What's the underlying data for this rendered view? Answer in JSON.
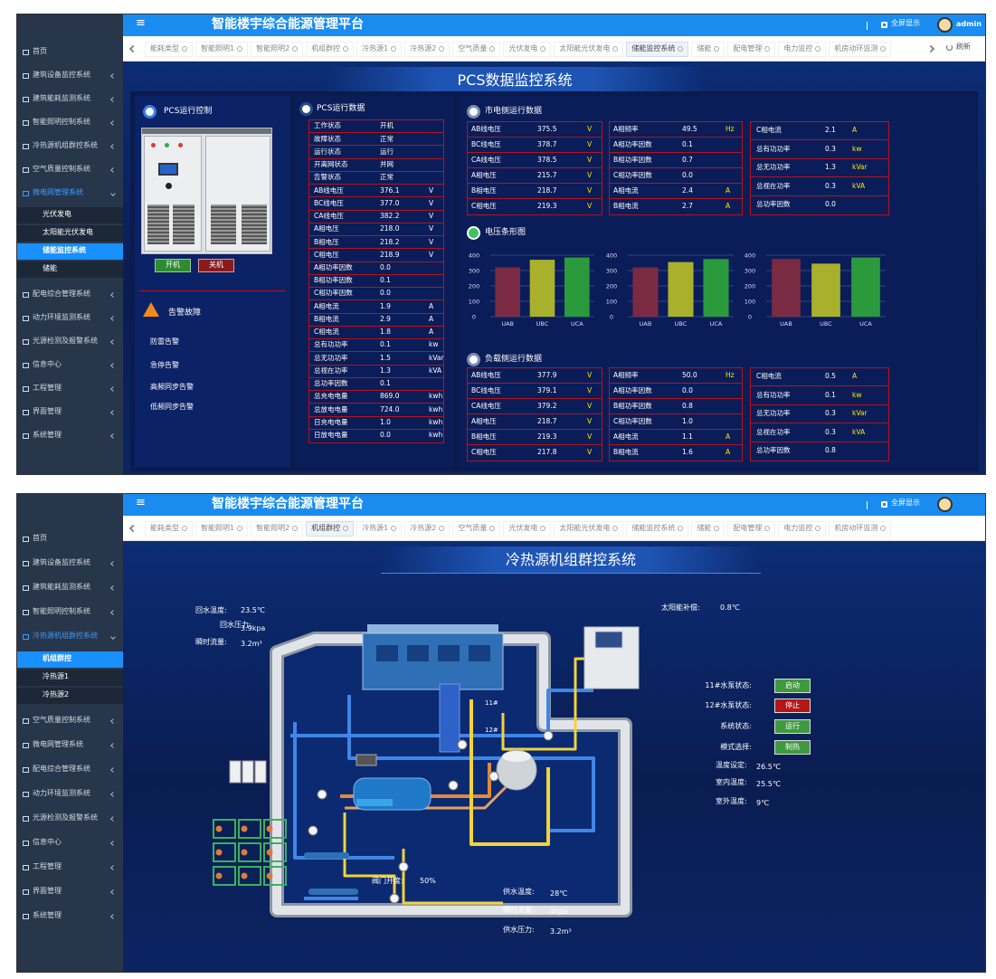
{
  "top": {
    "header": {
      "menu": "≡",
      "title": "智能楼宇综合能源管理平台",
      "fullscreen": "全屏显示",
      "user": "admin"
    },
    "sidebar": [
      {
        "label": "首页"
      },
      {
        "label": "建筑设备监控系统"
      },
      {
        "label": "建筑能耗监测系统"
      },
      {
        "label": "智能照明控制系统"
      },
      {
        "label": "冷热源机组群控系统"
      },
      {
        "label": "空气质量控制系统"
      },
      {
        "label": "微电网管理系统",
        "active": true,
        "children": [
          {
            "label": "光伏发电"
          },
          {
            "label": "太阳能光伏发电"
          },
          {
            "label": "储能监控系统",
            "active": true
          },
          {
            "label": "储能"
          }
        ]
      },
      {
        "label": "配电综合管理系统"
      },
      {
        "label": "动力环境监测系统"
      },
      {
        "label": "光源检测及报警系统"
      },
      {
        "label": "信息中心"
      },
      {
        "label": "工程管理"
      },
      {
        "label": "界面管理"
      },
      {
        "label": "系统管理"
      }
    ],
    "tabs": [
      {
        "label": "能耗类型"
      },
      {
        "label": "智能照明1"
      },
      {
        "label": "智能照明2"
      },
      {
        "label": "机组群控"
      },
      {
        "label": "冷热源1"
      },
      {
        "label": "冷热源2"
      },
      {
        "label": "空气质量"
      },
      {
        "label": "光伏发电"
      },
      {
        "label": "太阳能光伏发电"
      },
      {
        "label": "储能监控系统",
        "active": true
      },
      {
        "label": "储能"
      },
      {
        "label": "配电管理"
      },
      {
        "label": "电力监控"
      },
      {
        "label": "机房动环监测"
      }
    ],
    "tabs_right": "刷新",
    "main_title": "PCS数据监控系统",
    "pcs_control": {
      "title": "PCS运行控制",
      "buttons": [
        "开机",
        "关机"
      ]
    },
    "alarm": {
      "title": "告警故障",
      "items": [
        "防雷告警",
        "急停告警",
        "高频同步告警",
        "低频同步告警"
      ]
    },
    "pcs_data": {
      "title": "PCS运行数据",
      "rows": [
        [
          "工作状态",
          "开机"
        ],
        [
          "故障状态",
          "正常"
        ],
        [
          "运行状态",
          "运行"
        ],
        [
          "开离网状态",
          "并网"
        ],
        [
          "告警状态",
          "正常"
        ],
        [
          "AB线电压",
          "376.1",
          "V"
        ],
        [
          "BC线电压",
          "377.0",
          "V"
        ],
        [
          "CA线电压",
          "382.2",
          "V"
        ],
        [
          "A相电压",
          "218.0",
          "V"
        ],
        [
          "B相电压",
          "218.2",
          "V"
        ],
        [
          "C相电压",
          "218.9",
          "V"
        ],
        [
          "A相功率因数",
          "0.0"
        ],
        [
          "B相功率因数",
          "0.1"
        ],
        [
          "C相功率因数",
          "0.0"
        ],
        [
          "A相电流",
          "1.9",
          "A"
        ],
        [
          "B相电流",
          "2.9",
          "A"
        ],
        [
          "C相电流",
          "1.8",
          "A"
        ],
        [
          "总有功功率",
          "0.1",
          "kw"
        ],
        [
          "总无功功率",
          "1.5",
          "kVar"
        ],
        [
          "总视在功率",
          "1.3",
          "kVA"
        ],
        [
          "总功率因数",
          "0.1"
        ],
        [
          "总充电电量",
          "869.0",
          "kwh"
        ],
        [
          "总放电电量",
          "724.0",
          "kwh"
        ],
        [
          "日充电电量",
          "1.0",
          "kwh"
        ],
        [
          "日放电电量",
          "0.0",
          "kwh"
        ]
      ]
    },
    "grid_side": {
      "title": "市电侧运行数据",
      "columns": [
        [
          [
            "AB线电压",
            "375.5",
            "V"
          ],
          [
            "BC线电压",
            "378.7",
            "V"
          ],
          [
            "CA线电压",
            "378.5",
            "V"
          ],
          [
            "A相电压",
            "215.7",
            "V"
          ],
          [
            "B相电压",
            "218.7",
            "V"
          ],
          [
            "C相电压",
            "219.3",
            "V"
          ]
        ],
        [
          [
            "A相频率",
            "49.5",
            "Hz"
          ],
          [
            "A相功率因数",
            "0.1"
          ],
          [
            "B相功率因数",
            "0.7"
          ],
          [
            "C相功率因数",
            "0.0"
          ],
          [
            "A相电流",
            "2.4",
            "A"
          ],
          [
            "B相电流",
            "2.7",
            "A"
          ]
        ],
        [
          [
            "C相电流",
            "2.1",
            "A"
          ],
          [
            "总有功功率",
            "0.3",
            "kw"
          ],
          [
            "总无功功率",
            "1.3",
            "kVar"
          ],
          [
            "总视在功率",
            "0.3",
            "kVA"
          ],
          [
            "总功率因数",
            "0.0"
          ]
        ]
      ]
    },
    "voltage_chart": {
      "title": "电压条形图",
      "charts": [
        {
          "type": "bar",
          "categories": [
            "UAB",
            "UBC",
            "UCA"
          ],
          "values": [
            320,
            370,
            385
          ],
          "colors": [
            "#7b2a44",
            "#a9b12c",
            "#2b9a3c"
          ],
          "ylim": [
            0,
            400
          ],
          "yticks": [
            0,
            100,
            200,
            300,
            400
          ]
        },
        {
          "type": "bar",
          "categories": [
            "UAB",
            "UBC",
            "UCA"
          ],
          "values": [
            320,
            355,
            375
          ],
          "colors": [
            "#7b2a44",
            "#a9b12c",
            "#2b9a3c"
          ],
          "ylim": [
            0,
            400
          ],
          "yticks": [
            0,
            100,
            200,
            300,
            400
          ]
        },
        {
          "type": "bar",
          "categories": [
            "UAB",
            "UBC",
            "UCA"
          ],
          "values": [
            375,
            345,
            385
          ],
          "colors": [
            "#7b2a44",
            "#a9b12c",
            "#2b9a3c"
          ],
          "ylim": [
            0,
            400
          ],
          "yticks": [
            0,
            100,
            200,
            300,
            400
          ]
        }
      ]
    },
    "load_side": {
      "title": "负载侧运行数据",
      "columns": [
        [
          [
            "AB线电压",
            "377.9",
            "V"
          ],
          [
            "BC线电压",
            "379.1",
            "V"
          ],
          [
            "CA线电压",
            "379.2",
            "V"
          ],
          [
            "A相电压",
            "218.7",
            "V"
          ],
          [
            "B相电压",
            "219.3",
            "V"
          ],
          [
            "C相电压",
            "217.8",
            "V"
          ]
        ],
        [
          [
            "A相频率",
            "50.0",
            "Hz"
          ],
          [
            "A相功率因数",
            "0.0"
          ],
          [
            "B相功率因数",
            "0.8"
          ],
          [
            "C相功率因数",
            "1.0"
          ],
          [
            "A相电流",
            "1.1",
            "A"
          ],
          [
            "B相电流",
            "1.6",
            "A"
          ]
        ],
        [
          [
            "C相电流",
            "0.5",
            "A"
          ],
          [
            "总有功功率",
            "0.1",
            "kw"
          ],
          [
            "总无功功率",
            "0.3",
            "kVar"
          ],
          [
            "总视在功率",
            "0.3",
            "kVA"
          ],
          [
            "总功率因数",
            "0.8"
          ]
        ]
      ]
    }
  },
  "bottom": {
    "header": {
      "menu": "≡",
      "title": "智能楼宇综合能源管理平台",
      "fullscreen": "全屏显示"
    },
    "sidebar": [
      {
        "label": "首页"
      },
      {
        "label": "建筑设备监控系统"
      },
      {
        "label": "建筑能耗监测系统"
      },
      {
        "label": "智能照明控制系统"
      },
      {
        "label": "冷热源机组群控系统",
        "active": true,
        "children": [
          {
            "label": "机组群控",
            "active": true
          },
          {
            "label": "冷热源1"
          },
          {
            "label": "冷热源2"
          }
        ]
      },
      {
        "label": "空气质量控制系统"
      },
      {
        "label": "微电网管理系统"
      },
      {
        "label": "配电综合管理系统"
      },
      {
        "label": "动力环境监测系统"
      },
      {
        "label": "光源检测及报警系统"
      },
      {
        "label": "信息中心"
      },
      {
        "label": "工程管理"
      },
      {
        "label": "界面管理"
      },
      {
        "label": "系统管理"
      }
    ],
    "tabs": [
      {
        "label": "能耗类型"
      },
      {
        "label": "智能照明1"
      },
      {
        "label": "智能照明2"
      },
      {
        "label": "机组群控",
        "active": true
      },
      {
        "label": "冷热源1"
      },
      {
        "label": "冷热源2"
      },
      {
        "label": "空气质量"
      },
      {
        "label": "光伏发电"
      },
      {
        "label": "太阳能光伏发电"
      },
      {
        "label": "储能监控系统"
      },
      {
        "label": "储能"
      },
      {
        "label": "配电管理"
      },
      {
        "label": "电力监控"
      },
      {
        "label": "机房动环监测"
      }
    ],
    "main_title": "冷热源机组群控系统",
    "readings": [
      {
        "label": "回水温度:",
        "value": "23.5℃"
      },
      {
        "label": "回水压力:",
        "value": "3.9kpa"
      },
      {
        "label": "瞬时流量:",
        "value": "3.2m³"
      },
      {
        "label": "太阳能补偿:",
        "value": "0.8℃"
      },
      {
        "label": "温度设定:",
        "value": "26.5℃"
      },
      {
        "label": "室内温度:",
        "value": "25.5℃"
      },
      {
        "label": "室外温度:",
        "value": "9℃"
      },
      {
        "label": "阀门开度:",
        "value": "50%"
      },
      {
        "label": "供水温度:",
        "value": "28℃"
      },
      {
        "label": "瞬时流量:",
        "value": "4kpa"
      },
      {
        "label": "供水压力:",
        "value": "3.2m³"
      }
    ],
    "status": [
      {
        "label": "11#水泵状态:",
        "value": "启动",
        "color": "#3f9a3f"
      },
      {
        "label": "12#水泵状态:",
        "value": "停止",
        "color": "#b31717"
      },
      {
        "label": "系统状态:",
        "value": "运行",
        "color": "#3f9a3f"
      },
      {
        "label": "模式选择:",
        "value": "制热",
        "color": "#3f9a3f"
      }
    ],
    "pipe_labels": [
      "11#",
      "12#"
    ]
  }
}
